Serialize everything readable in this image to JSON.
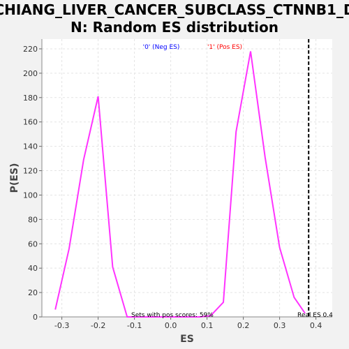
{
  "chart_data": {
    "type": "line",
    "title": "CHIANG_LIVER_CANCER_SUBCLASS_CTNNB1_DN: Random ES distribution",
    "title_lines": [
      "CHIANG_LIVER_CANCER_SUBCLASS_CTNNB1_D",
      "N: Random ES distribution"
    ],
    "xlabel": "ES",
    "ylabel": "P(ES)",
    "xlim": [
      -0.355,
      0.445
    ],
    "ylim": [
      0,
      228
    ],
    "x_ticks": [
      -0.3,
      -0.2,
      -0.1,
      0.0,
      0.1,
      0.2,
      0.3,
      0.4
    ],
    "x_tick_labels": [
      "-0.3",
      "-0.2",
      "-0.1",
      "0.0",
      "0.1",
      "0.2",
      "0.3",
      "0.4"
    ],
    "y_ticks": [
      0,
      20,
      40,
      60,
      80,
      100,
      120,
      140,
      160,
      180,
      200,
      220
    ],
    "y_tick_labels": [
      "0",
      "20",
      "40",
      "60",
      "80",
      "100",
      "120",
      "140",
      "160",
      "180",
      "200",
      "220"
    ],
    "grid": true,
    "series": [
      {
        "color": "#ff33ff",
        "x": [
          -0.318,
          -0.28,
          -0.24,
          -0.2,
          -0.16,
          -0.12,
          -0.08,
          -0.04,
          0.0,
          0.04,
          0.08,
          0.11,
          0.145,
          0.18,
          0.22,
          0.26,
          0.3,
          0.34,
          0.37
        ],
        "y": [
          6,
          56,
          129,
          181,
          41,
          0,
          0,
          0,
          0,
          0,
          0,
          1,
          12,
          152,
          218,
          131,
          57,
          16,
          3
        ]
      }
    ],
    "annotations": {
      "neg_label": "'0' (Neg ES)",
      "pos_label": "'1' (Pos ES)",
      "neg_color": "#0000ff",
      "pos_color": "#ff0000",
      "sets_text": "Sets with pos scores: 59%",
      "real_es_text": "Real ES 0.4",
      "real_es_value": 0.38
    }
  }
}
